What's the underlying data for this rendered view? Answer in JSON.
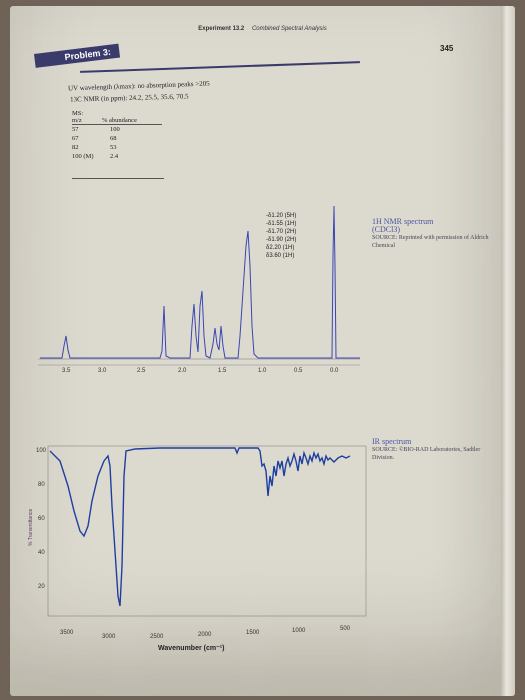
{
  "header": {
    "experiment": "Experiment 13.2",
    "subtitle": "Combined Spectral Analysis",
    "page_number": "345"
  },
  "problem": {
    "title": "Problem 3:",
    "uv_line": "UV wavelength (λmax): no absorption peaks >205",
    "cnmr_line": "13C NMR (in ppm): 24.2, 25.5, 35.6, 70.5",
    "ms_label": "MS:",
    "ms_columns": [
      "m/z",
      "% abundance"
    ],
    "ms_rows": [
      {
        "mz": "57",
        "abundance": "100"
      },
      {
        "mz": "67",
        "abundance": "68"
      },
      {
        "mz": "82",
        "abundance": "53"
      },
      {
        "mz": "100 (M)",
        "abundance": "2.4"
      }
    ]
  },
  "hnmr": {
    "caption_title": "1H NMR spectrum",
    "caption_solvent": "(CDCl3)",
    "caption_source": "SOURCE: Reprinted with permission of Aldrich Chemical",
    "peak_labels": [
      "-δ1.20 (5H)",
      "-δ1.55 (1H)",
      "-δ1.70 (2H)",
      "-δ1.90 (2H)",
      "δ2.20 (1H)",
      "δ3.60 (1H)"
    ],
    "axis_ticks": [
      "3.5",
      "3.0",
      "2.5",
      "2.0",
      "1.5",
      "1.0",
      "0.5",
      "0.0"
    ]
  },
  "ir": {
    "caption_title": "IR spectrum",
    "caption_source": "SOURCE: ©BIO-RAD Laboratories, Sadtler Division.",
    "y_label": "% Transmittance",
    "y_ticks": [
      "100",
      "80",
      "60",
      "40",
      "20"
    ],
    "x_ticks": [
      "3500",
      "3000",
      "2500",
      "2000",
      "1500",
      "1000",
      "500"
    ],
    "x_label": "Wavenumber (cm⁻¹)"
  },
  "colors": {
    "nmr_line": "#3a46b0",
    "ir_line": "#1f3fa0",
    "title_band": "#3b3b6b"
  }
}
